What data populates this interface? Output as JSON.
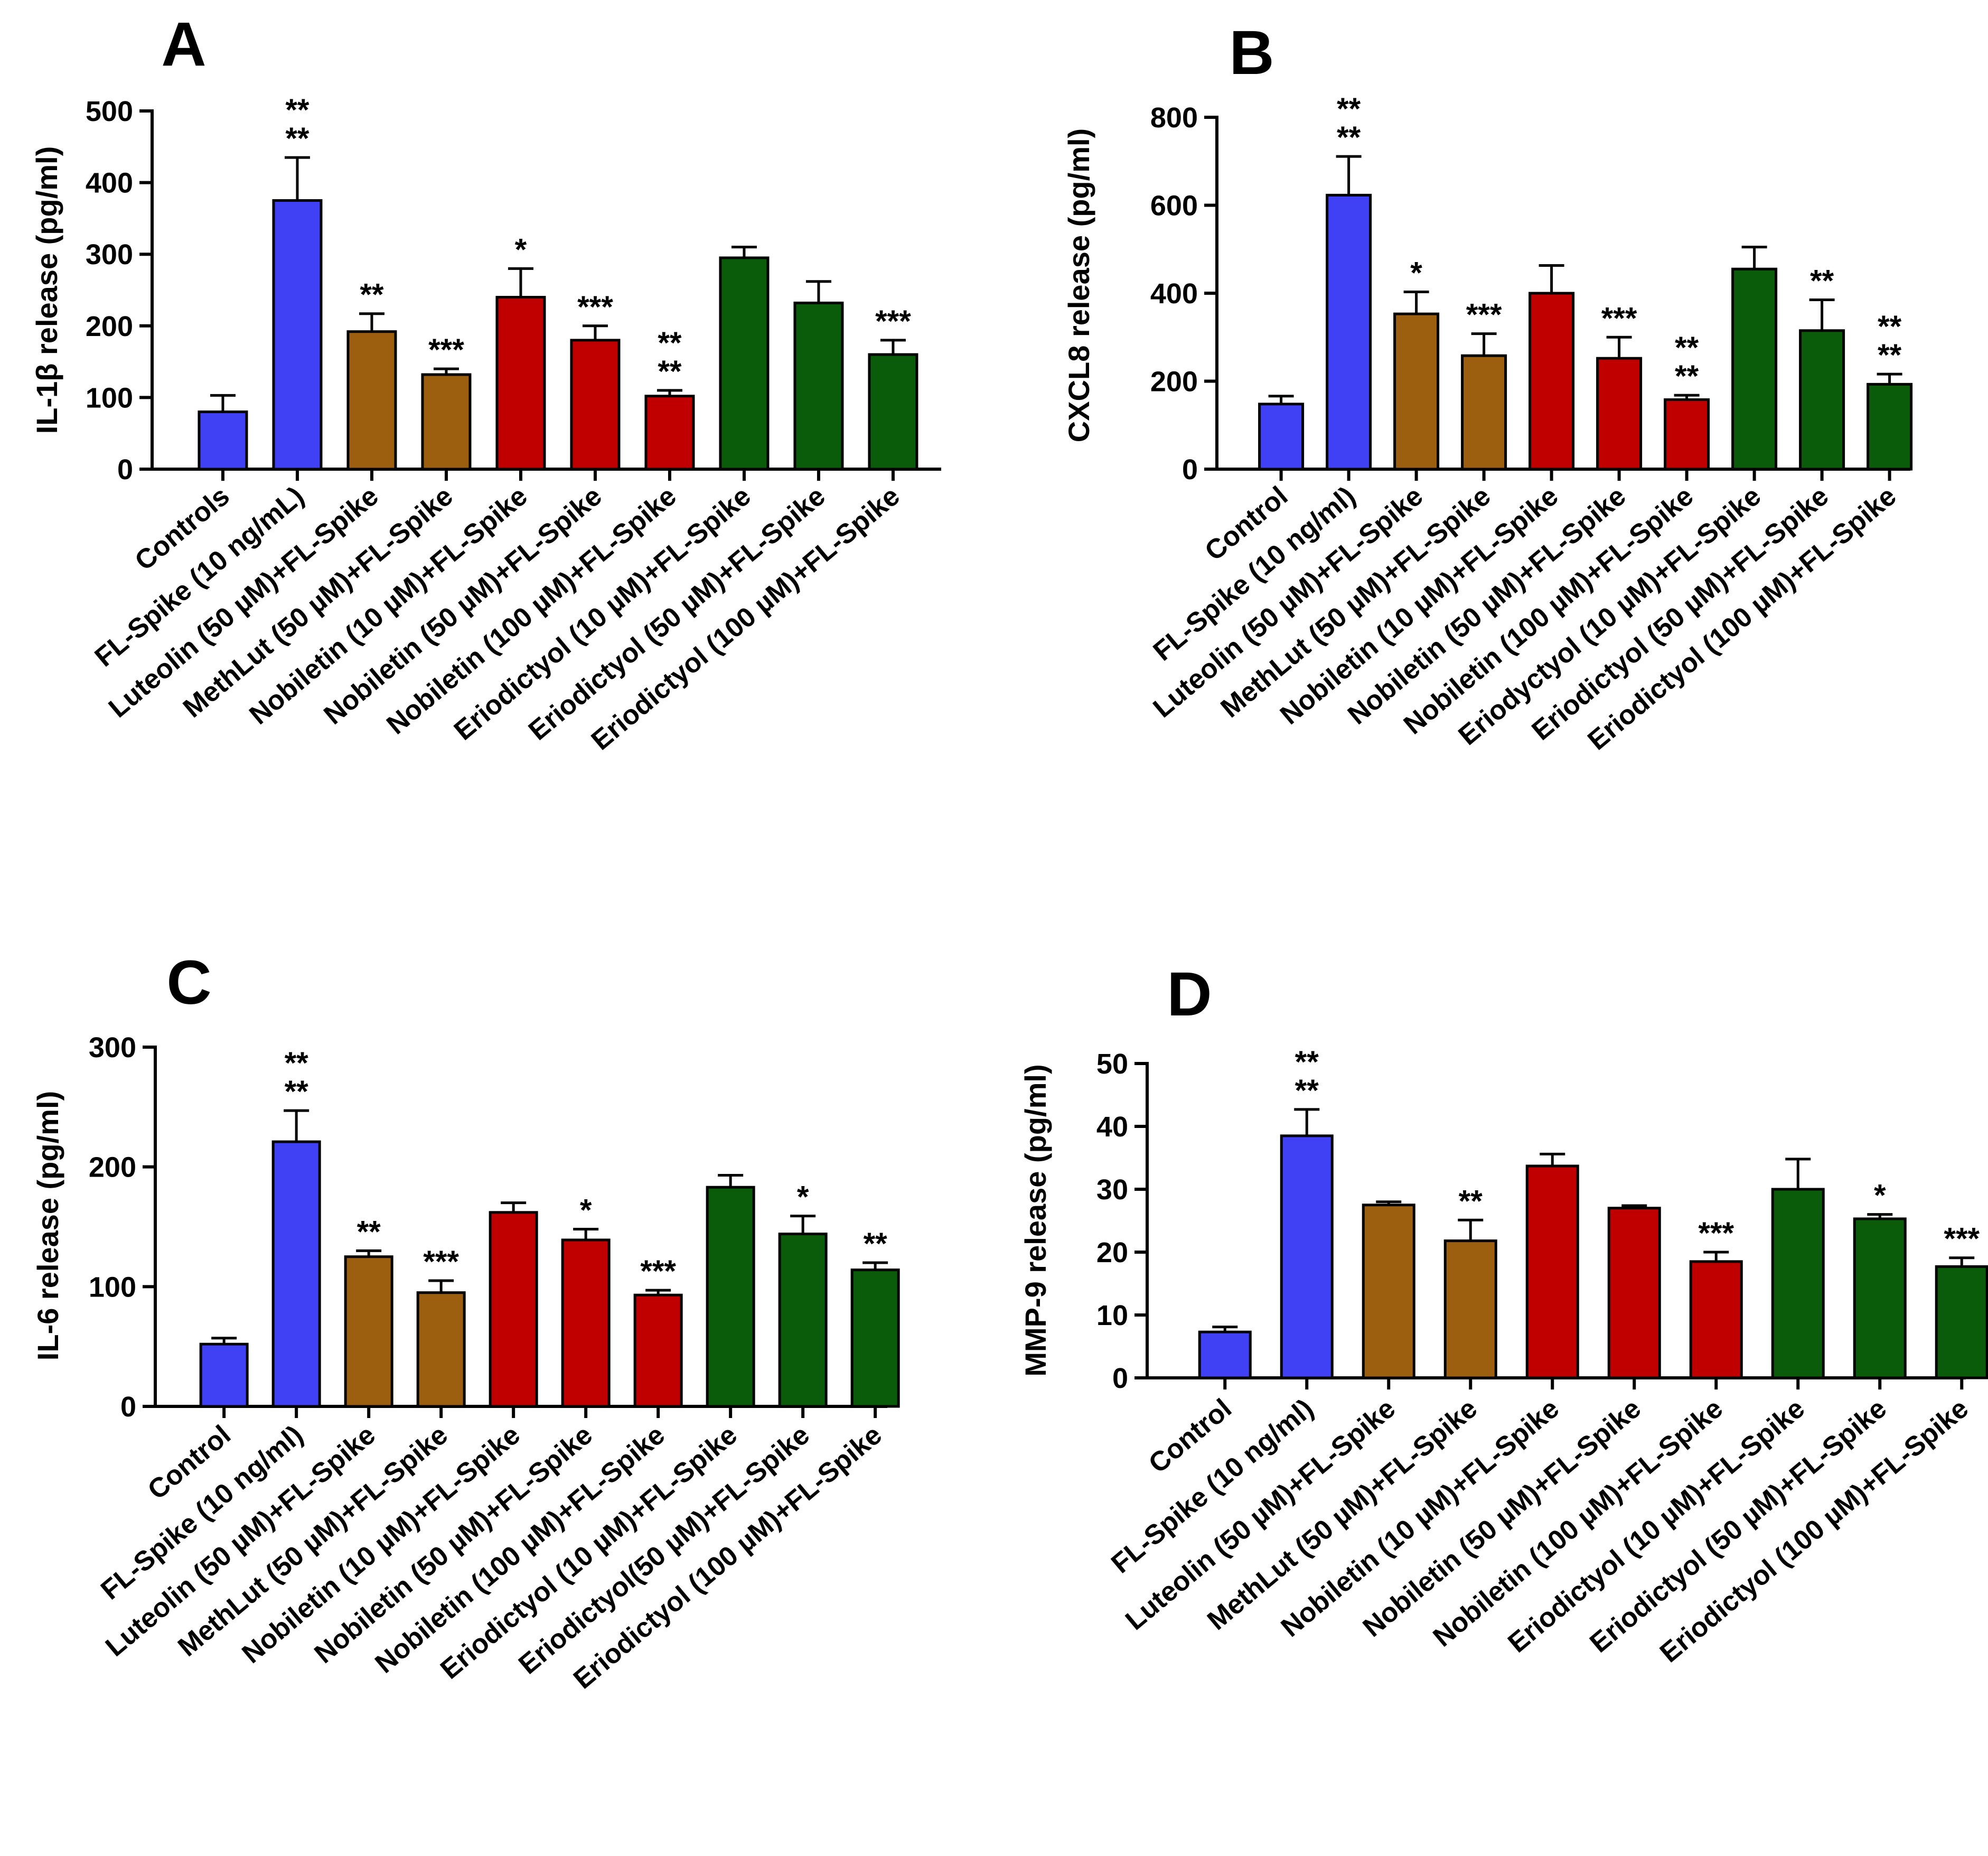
{
  "colors": {
    "blue": "#4040f5",
    "brown": "#9c5e0f",
    "red": "#c00000",
    "green": "#0a5c0a",
    "axis": "#000000"
  },
  "chart_data": [
    {
      "type": "bar",
      "panel_label": "A",
      "title": "",
      "xlabel": "",
      "ylabel": "IL-1β release (pg/ml)",
      "ylim": [
        0,
        500
      ],
      "yticks": [
        0,
        100,
        200,
        300,
        400,
        500
      ],
      "categories": [
        "Controls",
        "FL-Spike (10 ng/mL)",
        "Luteolin (50 µM)+FL-Spike",
        "MethLut (50 µM)+FL-Spike",
        "Nobiletin (10 µM)+FL-Spike",
        "Nobiletin (50 µM)+FL-Spike",
        "Nobiletin (100 µM)+FL-Spike",
        "Eriodictyol (10 µM)+FL-Spike",
        "Eriodictyol (50 µM)+FL-Spike",
        "Eriodictyol (100 µM)+FL-Spike"
      ],
      "values": [
        80,
        375,
        192,
        132,
        240,
        180,
        102,
        295,
        232,
        160
      ],
      "errors": [
        23,
        60,
        25,
        8,
        40,
        20,
        8,
        15,
        30,
        20
      ],
      "colors": [
        "blue",
        "blue",
        "brown",
        "brown",
        "red",
        "red",
        "red",
        "green",
        "green",
        "green"
      ],
      "significance": [
        [],
        [
          "**",
          "**"
        ],
        [
          "**"
        ],
        [
          "***"
        ],
        [
          "*"
        ],
        [
          "***"
        ],
        [
          "**",
          "**"
        ],
        [],
        [],
        [
          "***"
        ]
      ]
    },
    {
      "type": "bar",
      "panel_label": "B",
      "title": "",
      "xlabel": "",
      "ylabel": "CXCL8 release (pg/ml)",
      "ylim": [
        0,
        800
      ],
      "yticks": [
        0,
        200,
        400,
        600,
        800
      ],
      "categories": [
        "Control",
        "FL-Spike (10 ng/ml)",
        "Luteolin (50 µM)+FL-Spike",
        "MethLut (50 µM)+FL-Spike",
        "Nobiletin (10 µM)+FL-Spike",
        "Nobiletin (50 µM)+FL-Spike",
        "Nobiletin (100 µM)+FL-Spike",
        "Eriodyctyol (10 µM)+FL-Spike",
        "Eriodictyol (50 µM)+FL-Spike",
        "Eriodictyol (100 µM)+FL-Spike"
      ],
      "values": [
        148,
        623,
        353,
        258,
        400,
        252,
        158,
        455,
        315,
        193
      ],
      "errors": [
        18,
        88,
        50,
        50,
        63,
        48,
        10,
        50,
        70,
        23
      ],
      "colors": [
        "blue",
        "blue",
        "brown",
        "brown",
        "red",
        "red",
        "red",
        "green",
        "green",
        "green"
      ],
      "significance": [
        [],
        [
          "**",
          "**"
        ],
        [
          "*"
        ],
        [
          "***"
        ],
        [],
        [
          "***"
        ],
        [
          "**",
          "**"
        ],
        [],
        [
          "**"
        ],
        [
          "**",
          "**"
        ]
      ]
    },
    {
      "type": "bar",
      "panel_label": "C",
      "title": "",
      "xlabel": "",
      "ylabel": "IL-6 release  (pg/ml)",
      "ylim": [
        0,
        300
      ],
      "yticks": [
        0,
        100,
        200,
        300
      ],
      "categories": [
        "Control",
        "FL-Spike (10 ng/ml)",
        "Luteolin (50 µM)+FL-Spike",
        "MethLut (50 µM)+FL-Spike",
        "Nobiletin (10 µM)+FL-Spike",
        "Nobiletin (50 µM)+FL-Spike",
        "Nobiletin (100 µM)+FL-Spike",
        "Eriodictyol (10 µM)+FL-Spike",
        "Eriodictyol(50 µM)+FL-Spike",
        "Eriodictyol (100 µM)+FL-Spike"
      ],
      "values": [
        52,
        221,
        125,
        95,
        162,
        139,
        93,
        183,
        144,
        114
      ],
      "errors": [
        5,
        26,
        5,
        10,
        8,
        9,
        4,
        10,
        15,
        6
      ],
      "colors": [
        "blue",
        "blue",
        "brown",
        "brown",
        "red",
        "red",
        "red",
        "green",
        "green",
        "green"
      ],
      "significance": [
        [],
        [
          "**",
          "**"
        ],
        [
          "**"
        ],
        [
          "***"
        ],
        [],
        [
          "*"
        ],
        [
          "***"
        ],
        [],
        [
          "*"
        ],
        [
          "**"
        ]
      ]
    },
    {
      "type": "bar",
      "panel_label": "D",
      "title": "",
      "xlabel": "",
      "ylabel": "MMP-9 release (pg/ml)",
      "ylim": [
        0,
        50
      ],
      "yticks": [
        0,
        10,
        20,
        30,
        40,
        50
      ],
      "categories": [
        "Control",
        "FL-Spike (10 ng/ml)",
        "Luteolin (50 µM)+FL-Spike",
        "MethLut (50 µM)+FL-Spike",
        "Nobiletin (10 µM)+FL-Spike",
        "Nobiletin (50 µM)+FL-Spike",
        "Nobiletin (100 µM)+FL-Spike",
        "Eriodictyol (10 µM)+FL-Spike",
        "Eriodictyol (50 µM)+FL-Spike",
        "Eriodictyol (100 µM)+FL-Spike"
      ],
      "values": [
        7.3,
        38.5,
        27.5,
        21.8,
        33.7,
        27,
        18.5,
        30,
        25.3,
        17.7
      ],
      "errors": [
        0.8,
        4.2,
        0.5,
        3.3,
        1.9,
        0.4,
        1.5,
        4.8,
        0.7,
        1.4
      ],
      "colors": [
        "blue",
        "blue",
        "brown",
        "brown",
        "red",
        "red",
        "red",
        "green",
        "green",
        "green"
      ],
      "significance": [
        [],
        [
          "**",
          "**"
        ],
        [],
        [
          "**"
        ],
        [],
        [],
        [
          "***"
        ],
        [],
        [
          "*"
        ],
        [
          "***"
        ]
      ]
    }
  ]
}
